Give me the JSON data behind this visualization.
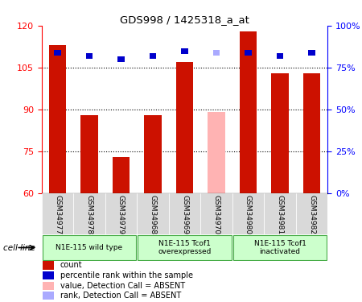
{
  "title": "GDS998 / 1425318_a_at",
  "samples": [
    "GSM34977",
    "GSM34978",
    "GSM34979",
    "GSM34968",
    "GSM34969",
    "GSM34970",
    "GSM34980",
    "GSM34981",
    "GSM34982"
  ],
  "counts": [
    113,
    88,
    73,
    88,
    107,
    89,
    118,
    103,
    103
  ],
  "ranks_pct": [
    84,
    82,
    80,
    82,
    85,
    84,
    84,
    82,
    84
  ],
  "absent": [
    false,
    false,
    false,
    false,
    false,
    true,
    false,
    false,
    false
  ],
  "ylim_left": [
    60,
    120
  ],
  "ylim_right": [
    0,
    100
  ],
  "yticks_left": [
    60,
    75,
    90,
    105,
    120
  ],
  "yticks_right": [
    0,
    25,
    50,
    75,
    100
  ],
  "bar_color_normal": "#cc1100",
  "bar_color_absent": "#ffb3b3",
  "rank_color_normal": "#0000cc",
  "rank_color_absent": "#aaaaff",
  "group_labels": [
    "N1E-115 wild type",
    "N1E-115 Tcof1\noverexpressed",
    "N1E-115 Tcof1\ninactivated"
  ],
  "group_ranges": [
    [
      0,
      3
    ],
    [
      3,
      6
    ],
    [
      6,
      9
    ]
  ],
  "legend_items": [
    {
      "label": "count",
      "color": "#cc1100"
    },
    {
      "label": "percentile rank within the sample",
      "color": "#0000cc"
    },
    {
      "label": "value, Detection Call = ABSENT",
      "color": "#ffb3b3"
    },
    {
      "label": "rank, Detection Call = ABSENT",
      "color": "#aaaaff"
    }
  ],
  "cell_line_label": "cell line",
  "bar_width": 0.55
}
